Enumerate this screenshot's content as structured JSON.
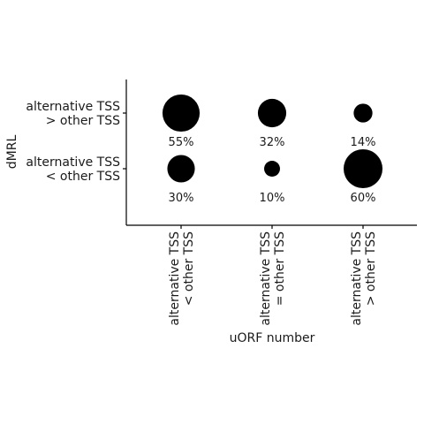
{
  "chart_data": {
    "type": "scatter",
    "xlabel": "uORF number",
    "ylabel": "dMRL",
    "x_categories": [
      [
        "alternative TSS",
        "< other TSS"
      ],
      [
        "alternative TSS",
        "= other TSS"
      ],
      [
        "alternative TSS",
        "> other TSS"
      ]
    ],
    "y_categories": [
      [
        "alternative TSS",
        "> other TSS"
      ],
      [
        "alternative TSS",
        "< other TSS"
      ]
    ],
    "points": [
      {
        "x": 0,
        "y": 0,
        "value": 55,
        "label": "55%"
      },
      {
        "x": 1,
        "y": 0,
        "value": 32,
        "label": "32%"
      },
      {
        "x": 2,
        "y": 0,
        "value": 14,
        "label": "14%"
      },
      {
        "x": 0,
        "y": 1,
        "value": 30,
        "label": "30%"
      },
      {
        "x": 1,
        "y": 1,
        "value": 10,
        "label": "10%"
      },
      {
        "x": 2,
        "y": 1,
        "value": 60,
        "label": "60%"
      }
    ],
    "grid": false,
    "color": "#000000"
  }
}
